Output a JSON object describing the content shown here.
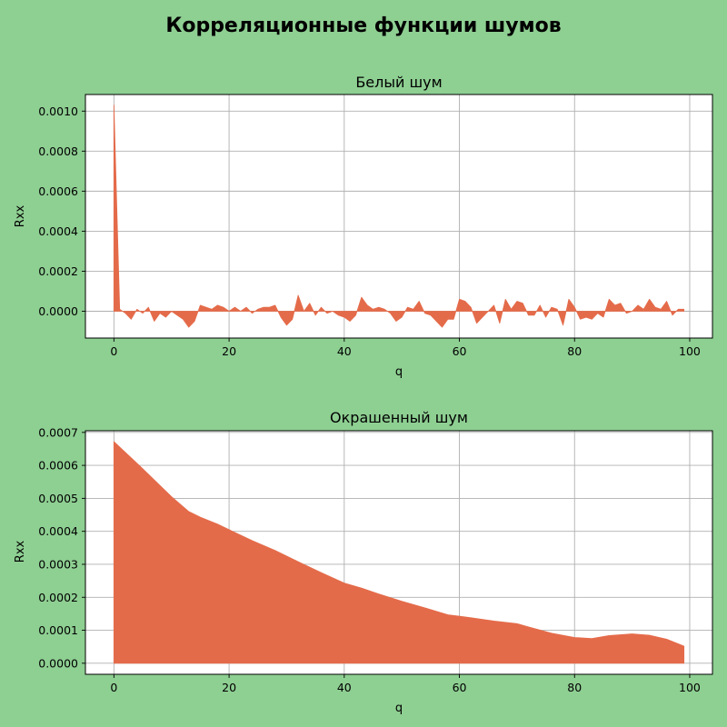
{
  "figure": {
    "title": "Корреляционные функции шумов",
    "background": "#8ecf92",
    "fill_color": "#e46b4a"
  },
  "chart_data": [
    {
      "type": "area",
      "title": "Белый шум",
      "xlabel": "q",
      "ylabel": "Rxx",
      "xlim": [
        -4.95,
        103.95
      ],
      "ylim": [
        -0.000134,
        0.001083
      ],
      "grid": true,
      "x_ticks": [
        0,
        20,
        40,
        60,
        80,
        100
      ],
      "x_tick_labels": [
        "0",
        "20",
        "40",
        "60",
        "80",
        "100"
      ],
      "y_ticks": [
        0,
        0.0002,
        0.0004,
        0.0006,
        0.0008,
        0.001
      ],
      "y_tick_labels": [
        "0.0000",
        "0.0002",
        "0.0004",
        "0.0006",
        "0.0008",
        "0.0010"
      ],
      "x": [
        0,
        1,
        2,
        3,
        4,
        5,
        6,
        7,
        8,
        9,
        10,
        11,
        12,
        13,
        14,
        15,
        16,
        17,
        18,
        19,
        20,
        21,
        22,
        23,
        24,
        25,
        26,
        27,
        28,
        29,
        30,
        31,
        32,
        33,
        34,
        35,
        36,
        37,
        38,
        39,
        40,
        41,
        42,
        43,
        44,
        45,
        46,
        47,
        48,
        49,
        50,
        51,
        52,
        53,
        54,
        55,
        56,
        57,
        58,
        59,
        60,
        61,
        62,
        63,
        64,
        65,
        66,
        67,
        68,
        69,
        70,
        71,
        72,
        73,
        74,
        75,
        76,
        77,
        78,
        79,
        80,
        81,
        82,
        83,
        84,
        85,
        86,
        87,
        88,
        89,
        90,
        91,
        92,
        93,
        94,
        95,
        96,
        97,
        98,
        99
      ],
      "values": [
        0.00103,
        1e-05,
        -1e-05,
        -4e-05,
        1e-05,
        -1e-05,
        2e-05,
        -5e-05,
        -1e-05,
        -3e-05,
        0.0,
        -2e-05,
        -4e-05,
        -8e-05,
        -5e-05,
        3e-05,
        2e-05,
        1e-05,
        3e-05,
        2e-05,
        0.0,
        2e-05,
        0.0,
        2e-05,
        -1e-05,
        1e-05,
        2e-05,
        2e-05,
        3e-05,
        -3e-05,
        -7e-05,
        -4e-05,
        8e-05,
        0.0,
        4e-05,
        -2e-05,
        2e-05,
        -1e-05,
        0.0,
        -2e-05,
        -3e-05,
        -5e-05,
        -2e-05,
        7e-05,
        3e-05,
        1e-05,
        2e-05,
        1e-05,
        -1e-05,
        -5e-05,
        -3e-05,
        2e-05,
        1e-05,
        5e-05,
        -1e-05,
        -2e-05,
        -5e-05,
        -8e-05,
        -4e-05,
        -4e-05,
        6e-05,
        5e-05,
        2e-05,
        -6e-05,
        -3e-05,
        0.0,
        3e-05,
        -6e-05,
        6e-05,
        1e-05,
        5e-05,
        4e-05,
        -2e-05,
        -2e-05,
        3e-05,
        -3e-05,
        2e-05,
        1e-05,
        -7e-05,
        6e-05,
        2e-05,
        -4e-05,
        -3e-05,
        -4e-05,
        -1e-05,
        -3e-05,
        6e-05,
        3e-05,
        4e-05,
        -1e-05,
        0.0,
        3e-05,
        1e-05,
        6e-05,
        2e-05,
        1e-05,
        5e-05,
        -2e-05,
        1e-05,
        1e-05
      ]
    },
    {
      "type": "area",
      "title": "Окрашенный шум",
      "xlabel": "q",
      "ylabel": "Rxx",
      "xlim": [
        -4.95,
        103.95
      ],
      "ylim": [
        -3.35e-05,
        0.000705
      ],
      "grid": true,
      "x_ticks": [
        0,
        20,
        40,
        60,
        80,
        100
      ],
      "x_tick_labels": [
        "0",
        "20",
        "40",
        "60",
        "80",
        "100"
      ],
      "y_ticks": [
        0,
        0.0001,
        0.0002,
        0.0003,
        0.0004,
        0.0005,
        0.0006,
        0.0007
      ],
      "y_tick_labels": [
        "0.0000",
        "0.0001",
        "0.0002",
        "0.0003",
        "0.0004",
        "0.0005",
        "0.0006",
        "0.0007"
      ],
      "x": [
        0,
        5,
        10,
        13,
        15,
        18,
        20,
        24,
        28,
        32,
        36,
        40,
        43,
        46,
        50,
        54,
        58,
        62,
        66,
        70,
        72,
        76,
        80,
        83,
        86,
        90,
        93,
        96,
        99
      ],
      "values": [
        0.000672,
        0.00059,
        0.000505,
        0.00046,
        0.000443,
        0.000422,
        0.000405,
        0.000372,
        0.000342,
        0.000308,
        0.000275,
        0.000243,
        0.000228,
        0.00021,
        0.000188,
        0.000168,
        0.000147,
        0.000138,
        0.000128,
        0.00012,
        0.00011,
        9.1e-05,
        7.8e-05,
        7.5e-05,
        8.4e-05,
        8.9e-05,
        8.5e-05,
        7.3e-05,
        5.2e-05
      ]
    }
  ]
}
